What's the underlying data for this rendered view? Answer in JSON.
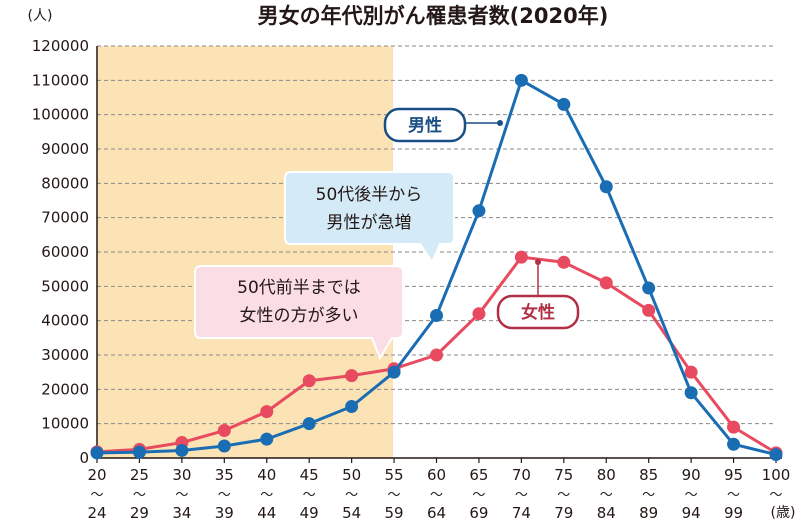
{
  "chart_data": {
    "type": "line",
    "title": "男女の年代別がん罹患者数(2020年)",
    "y_unit": "(人)",
    "x_unit": "(歳)",
    "ylim": [
      0,
      120000
    ],
    "y_ticks": [
      0,
      10000,
      20000,
      30000,
      40000,
      50000,
      60000,
      70000,
      80000,
      90000,
      100000,
      110000,
      120000
    ],
    "categories": [
      {
        "from": "20",
        "to": "24"
      },
      {
        "from": "25",
        "to": "29"
      },
      {
        "from": "30",
        "to": "34"
      },
      {
        "from": "35",
        "to": "39"
      },
      {
        "from": "40",
        "to": "44"
      },
      {
        "from": "45",
        "to": "49"
      },
      {
        "from": "50",
        "to": "54"
      },
      {
        "from": "55",
        "to": "59"
      },
      {
        "from": "60",
        "to": "64"
      },
      {
        "from": "65",
        "to": "69"
      },
      {
        "from": "70",
        "to": "74"
      },
      {
        "from": "75",
        "to": "79"
      },
      {
        "from": "80",
        "to": "84"
      },
      {
        "from": "85",
        "to": "89"
      },
      {
        "from": "90",
        "to": "94"
      },
      {
        "from": "95",
        "to": "99"
      },
      {
        "from": "100",
        "to": ""
      }
    ],
    "tilde": "〜",
    "grid": "horizontal-dashed",
    "highlight_range": [
      "20〜24",
      "50〜54"
    ],
    "highlight_color": "#fbe3b5",
    "series": [
      {
        "name": "男性",
        "color": "#1a6db3",
        "values": [
          1500,
          1700,
          2200,
          3500,
          5500,
          10000,
          15000,
          25000,
          41500,
          72000,
          110000,
          103000,
          79000,
          49500,
          19000,
          4000,
          1000
        ]
      },
      {
        "name": "女性",
        "color": "#e84a5f",
        "values": [
          1800,
          2500,
          4500,
          8000,
          13500,
          22500,
          24000,
          26000,
          30000,
          42000,
          58500,
          57000,
          51000,
          43000,
          25000,
          9000,
          1500
        ]
      }
    ],
    "annotations": [
      {
        "id": "male-label",
        "lines": [
          "男性"
        ]
      },
      {
        "id": "female-label",
        "lines": [
          "女性"
        ]
      },
      {
        "id": "note-rise",
        "lines": [
          "50代後半から",
          "男性が急増"
        ]
      },
      {
        "id": "note-women",
        "lines": [
          "50代前半までは",
          "女性の方が多い"
        ]
      }
    ]
  }
}
